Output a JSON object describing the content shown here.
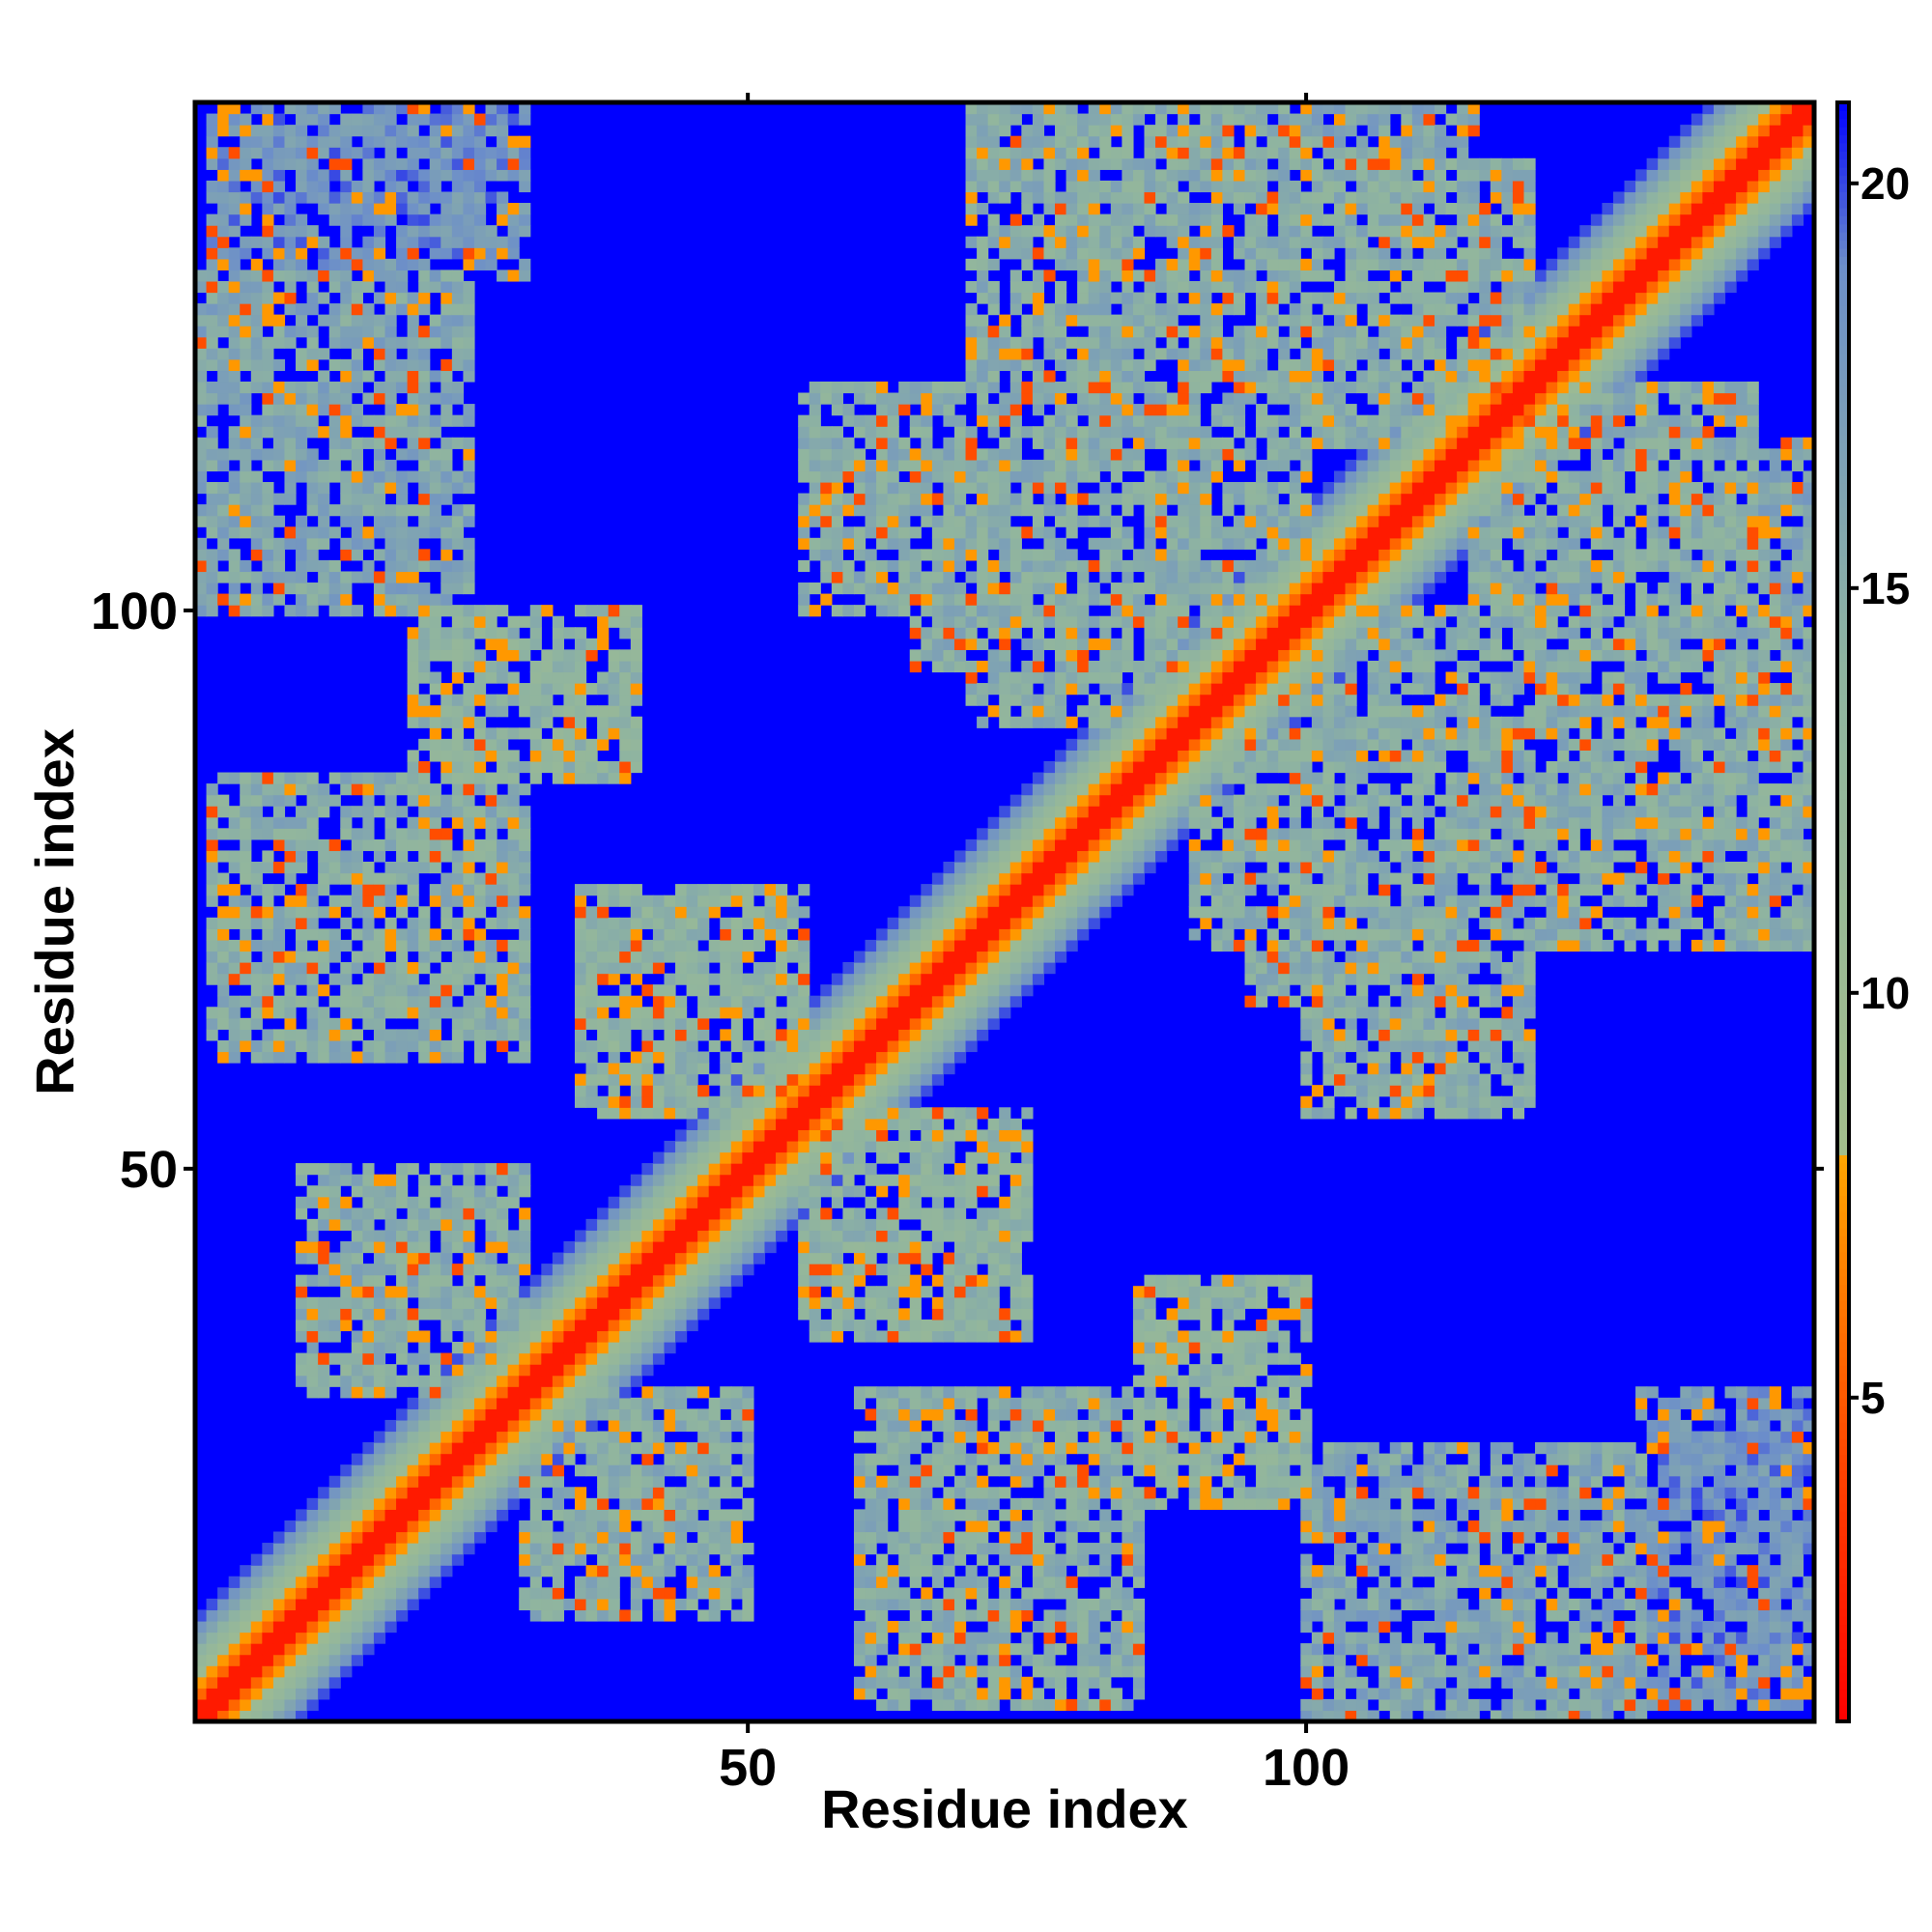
{
  "chart_data": {
    "type": "heatmap",
    "title": "",
    "xlabel": "Residue index",
    "ylabel": "Residue index",
    "n_residues": 145,
    "xlim": [
      1,
      145
    ],
    "ylim": [
      1,
      145
    ],
    "x_ticks": [
      {
        "value": 50,
        "label": "50"
      },
      {
        "value": 100,
        "label": "100"
      }
    ],
    "y_ticks": [
      {
        "value": 50,
        "label": "50"
      },
      {
        "value": 100,
        "label": "100"
      }
    ],
    "colorbar": {
      "range": [
        1,
        21
      ],
      "ticks": [
        {
          "value": 5,
          "label": "5"
        },
        {
          "value": 10,
          "label": "10"
        },
        {
          "value": 15,
          "label": "15"
        },
        {
          "value": 20,
          "label": "20"
        }
      ],
      "stops": [
        {
          "value": 1,
          "color": "#ff0000"
        },
        {
          "value": 4,
          "color": "#ff4000"
        },
        {
          "value": 8,
          "color": "#ffa500"
        },
        {
          "value": 8.01,
          "color": "#a3be8c"
        },
        {
          "value": 14,
          "color": "#8fb4a0"
        },
        {
          "value": 19,
          "color": "#6d8fc9"
        },
        {
          "value": 21,
          "color": "#0000ff"
        }
      ]
    },
    "background_value": 21,
    "grid": false,
    "legend": "colorbar-right",
    "contact_blocks": [
      {
        "i": [
          2,
          30
        ],
        "j": [
          60,
          85
        ],
        "level": 15
      },
      {
        "i": [
          10,
          30
        ],
        "j": [
          30,
          50
        ],
        "level": 15
      },
      {
        "i": [
          20,
          40
        ],
        "j": [
          85,
          100
        ],
        "level": 14
      },
      {
        "i": [
          35,
          55
        ],
        "j": [
          55,
          75
        ],
        "level": 14
      },
      {
        "i": [
          70,
          100
        ],
        "j": [
          90,
          145
        ],
        "level": 15
      },
      {
        "i": [
          55,
          75
        ],
        "j": [
          100,
          120
        ],
        "level": 15
      },
      {
        "i": [
          85,
          120
        ],
        "j": [
          115,
          140
        ],
        "level": 15
      },
      {
        "i": [
          95,
          120
        ],
        "j": [
          65,
          85
        ],
        "level": 15
      },
      {
        "i": [
          100,
          130
        ],
        "j": [
          1,
          25
        ],
        "level": 16
      },
      {
        "i": [
          125,
          145
        ],
        "j": [
          80,
          115
        ],
        "level": 16
      },
      {
        "i": [
          130,
          145
        ],
        "j": [
          2,
          30
        ],
        "level": 18
      },
      {
        "i": [
          80,
          95
        ],
        "j": [
          130,
          145
        ],
        "level": 15
      },
      {
        "i": [
          2,
          15
        ],
        "j": [
          130,
          145
        ],
        "level": 18
      }
    ]
  }
}
